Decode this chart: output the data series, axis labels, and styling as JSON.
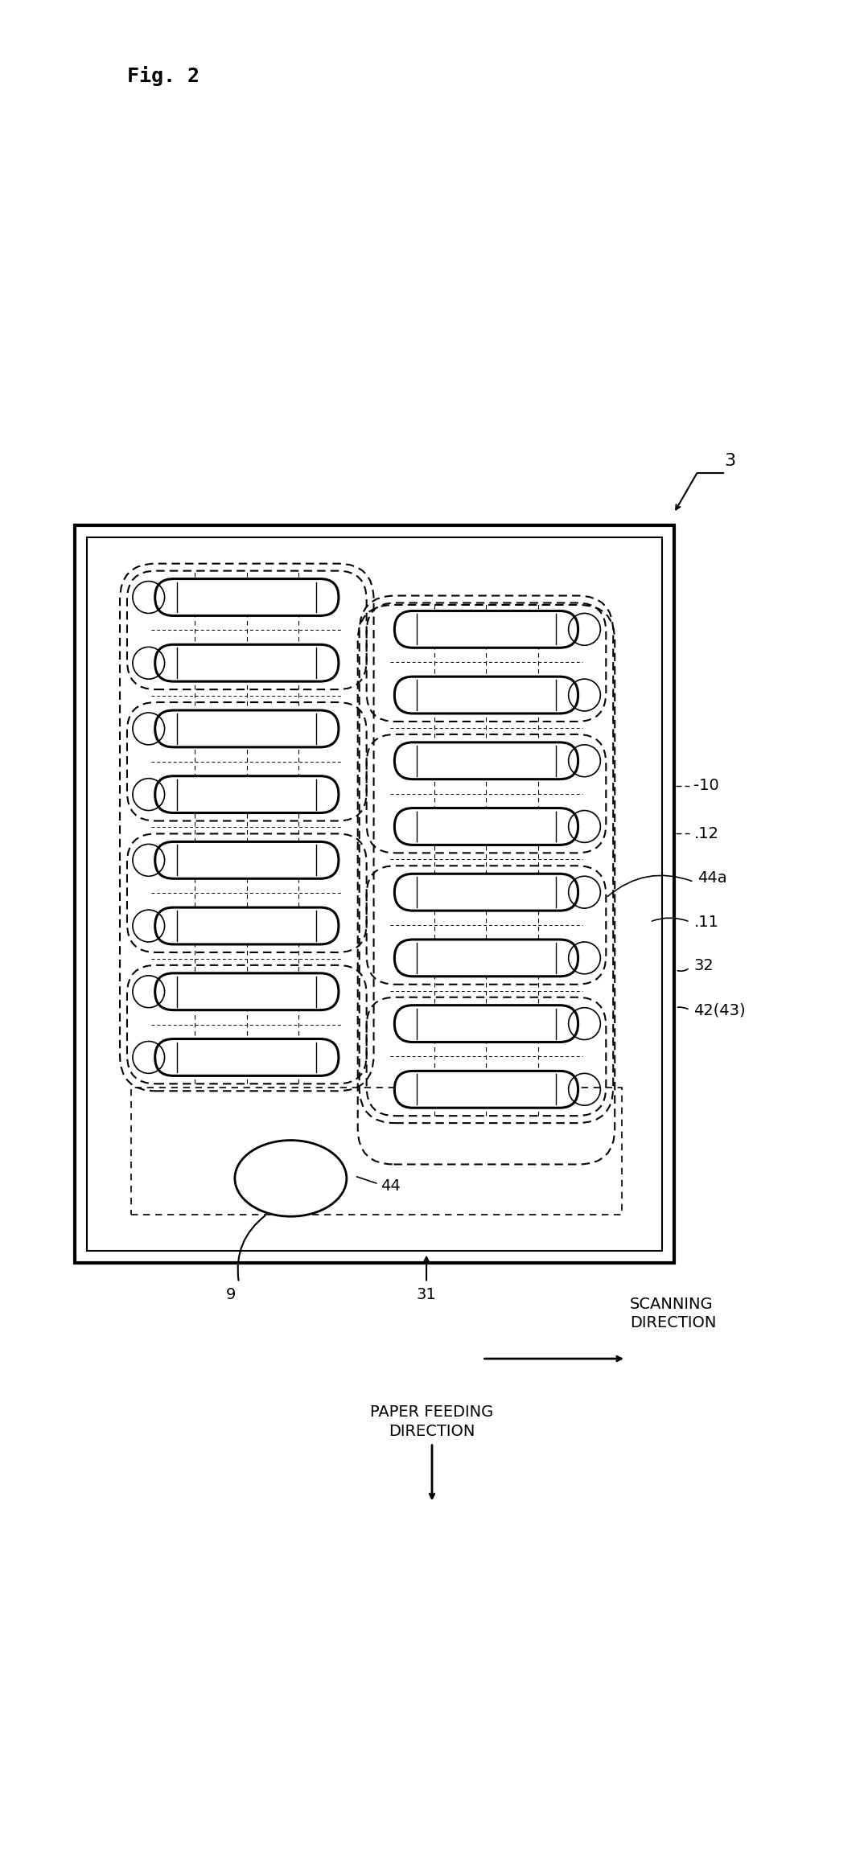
{
  "title": "Fig. 2",
  "bg_color": "#ffffff",
  "fig_width": 10.74,
  "fig_height": 23.21,
  "label_3": "3",
  "label_9": "9",
  "label_10": "-10",
  "label_11": ".11",
  "label_12": ".12",
  "label_31": "31",
  "label_32": "32",
  "label_44": "44",
  "label_44a": "44a",
  "label_42": "42(43)",
  "scanning_direction": "SCANNING\nDIRECTION",
  "paper_feeding": "PAPER FEEDING\nDIRECTION"
}
